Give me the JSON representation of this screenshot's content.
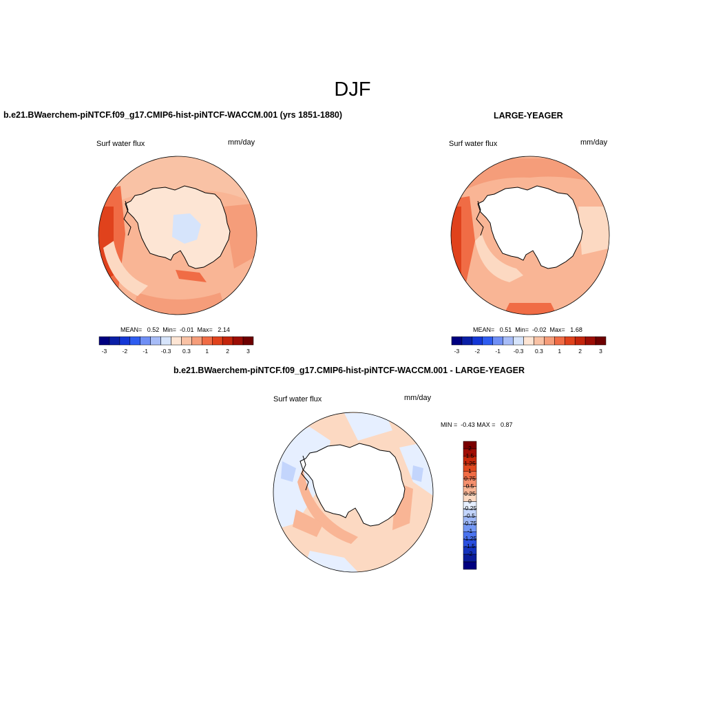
{
  "main_title": "DJF",
  "panels": {
    "left": {
      "title": "b.e21.BWaerchem-piNTCF.f09_g17.CMIP6-hist-piNTCF-WACCM.001 (yrs 1851-1880)",
      "variable": "Surf water flux",
      "units": "mm/day",
      "stats_label": "MEAN=   0.52  Min=  -0.01  Max=   2.14",
      "mean": 0.52,
      "min": -0.01,
      "max": 2.14
    },
    "right": {
      "title": "LARGE-YEAGER",
      "variable": "Surf water flux",
      "units": "mm/day",
      "stats_label": "MEAN=   0.51  Min=  -0.02  Max=   1.68",
      "mean": 0.51,
      "min": -0.02,
      "max": 1.68
    },
    "diff": {
      "title": "b.e21.BWaerchem-piNTCF.f09_g17.CMIP6-hist-piNTCF-WACCM.001 - LARGE-YEAGER",
      "variable": "Surf water flux",
      "units": "mm/day",
      "stats_label": "MIN =  -0.43 MAX =   0.87",
      "min": -0.43,
      "max": 0.87
    }
  },
  "horizontal_colorbar": {
    "colors": [
      "#000080",
      "#0a1fa6",
      "#1437d6",
      "#2e5cf0",
      "#6f8ff5",
      "#a7bcf7",
      "#d6e4fb",
      "#fde5d4",
      "#f9c2a5",
      "#f59d7a",
      "#f06c45",
      "#e0421c",
      "#c4250c",
      "#9c0d05",
      "#6e0000"
    ],
    "tick_labels": [
      "-3",
      "-2",
      "-1",
      "-0.3",
      "0.3",
      "1",
      "2",
      "3"
    ]
  },
  "vertical_colorbar": {
    "colors_top_to_bottom": [
      "#7a0000",
      "#a10e05",
      "#c8290c",
      "#e0491f",
      "#f06c45",
      "#f5906e",
      "#f9b595",
      "#fcd9c2",
      "#e6efff",
      "#c3d5fc",
      "#9eb8f7",
      "#7397f3",
      "#4a73ef",
      "#2a4fe0",
      "#1533bd",
      "#0b1c9a",
      "#000080"
    ],
    "tick_labels": [
      "2",
      "1.5",
      "1.25",
      "1",
      "0.75",
      "0.5",
      "0.25",
      "0",
      "-0.25",
      "-0.5",
      "-0.75",
      "-1",
      "-1.25",
      "-1.5",
      "-2"
    ]
  },
  "colors": {
    "land": "#ffffff",
    "coast": "#000000"
  }
}
